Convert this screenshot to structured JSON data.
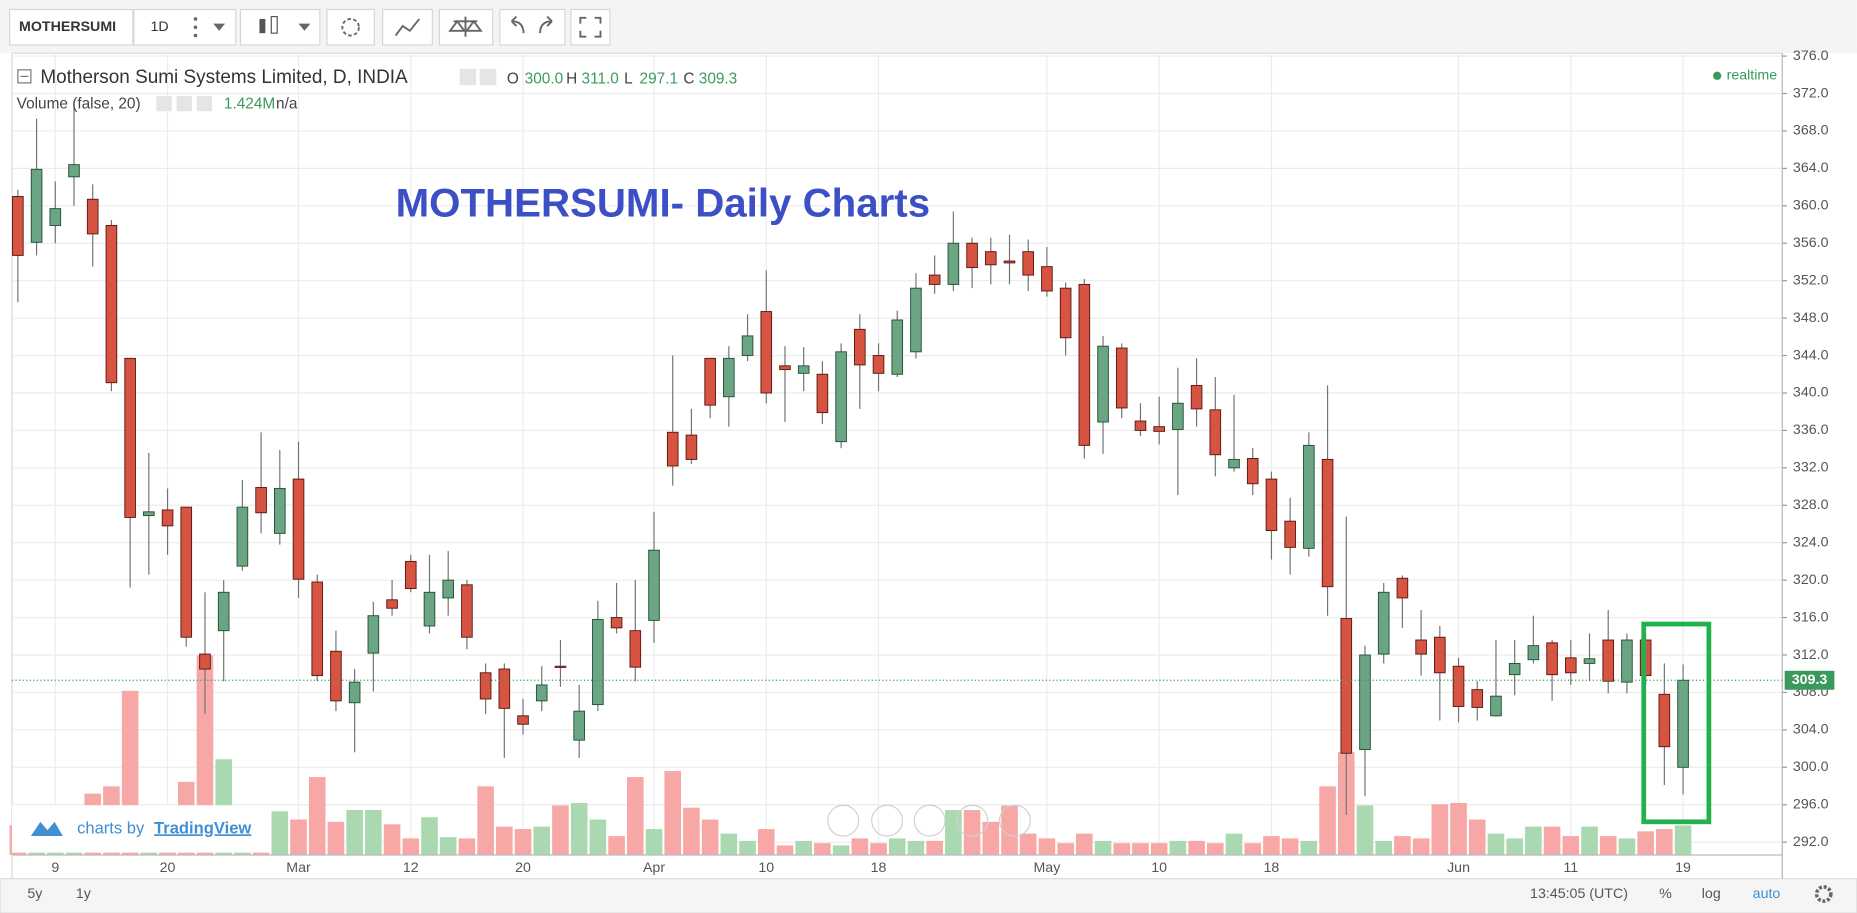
{
  "toolbar": {
    "symbol": "MOTHERSUMI",
    "interval": "1D"
  },
  "chart_data": {
    "type": "candlestick",
    "title": "MOTHERSUMI- Daily Charts",
    "symbol_description": "Motherson Sumi Systems Limited, D, INDIA",
    "ohlc_keys": [
      "O",
      "H",
      "L",
      "C"
    ],
    "ohlc_labels": [
      "300.0",
      "311.0",
      "297.1",
      "309.3"
    ],
    "volume_title": "Volume (false, 20)",
    "volume_label": "1.424M",
    "volume_ma_label": "n/a",
    "status": "realtime",
    "up_color": "#6ba583",
    "down_color": "#d75442",
    "up_border": "#225437",
    "down_border": "#5b1a13",
    "wick_color": "#737375",
    "up_volume_color": "#a9d8b1",
    "down_volume_color": "#f7a7a5",
    "last_price_color": "#3a9a5b",
    "grid": true,
    "categories": [
      null,
      null,
      "9",
      null,
      null,
      null,
      null,
      null,
      "20",
      null,
      null,
      null,
      null,
      null,
      null,
      "Mar",
      null,
      null,
      null,
      null,
      null,
      "12",
      null,
      null,
      null,
      null,
      null,
      "20",
      null,
      null,
      null,
      null,
      null,
      null,
      "Apr",
      null,
      null,
      null,
      null,
      null,
      "10",
      null,
      null,
      null,
      null,
      null,
      "18",
      null,
      null,
      null,
      null,
      null,
      null,
      null,
      null,
      "May",
      null,
      null,
      null,
      null,
      null,
      "10",
      null,
      null,
      null,
      null,
      null,
      "18",
      null,
      null,
      null,
      null,
      null,
      null,
      null,
      null,
      null,
      "Jun",
      null,
      null,
      null,
      null,
      null,
      "11",
      null,
      null,
      null,
      null,
      null,
      "19"
    ],
    "open": [
      361.0,
      356.1,
      357.9,
      363.1,
      360.7,
      357.9,
      343.7,
      326.9,
      327.5,
      327.8,
      312.1,
      314.6,
      321.5,
      329.9,
      325.0,
      330.8,
      319.8,
      312.4,
      306.9,
      312.2,
      317.9,
      322.0,
      315.1,
      318.1,
      319.5,
      310.1,
      310.5,
      305.5,
      307.1,
      310.8,
      302.9,
      306.7,
      316.0,
      314.6,
      315.7,
      335.8,
      335.5,
      343.7,
      339.6,
      344.0,
      348.7,
      342.9,
      342.1,
      342.0,
      334.8,
      346.8,
      344.0,
      342.0,
      344.4,
      352.6,
      351.6,
      356.0,
      355.1,
      354.1,
      355.1,
      353.5,
      351.2,
      351.6,
      336.9,
      344.8,
      337.0,
      336.4,
      336.1,
      340.8,
      338.2,
      332.0,
      333.0,
      330.8,
      326.3,
      323.4,
      332.9,
      315.9,
      301.9,
      312.1,
      320.2,
      313.6,
      313.9,
      310.8,
      308.3,
      305.5,
      309.9,
      311.5,
      313.3,
      311.7,
      311.1,
      313.6,
      309.1,
      313.6,
      307.8,
      300.0
    ],
    "high": [
      361.7,
      369.3,
      362.6,
      371.2,
      362.3,
      358.5,
      343.7,
      333.6,
      329.8,
      327.8,
      318.7,
      320.0,
      330.7,
      335.8,
      333.9,
      334.8,
      320.6,
      314.6,
      310.5,
      317.7,
      320.0,
      322.7,
      322.7,
      323.1,
      320.0,
      311.1,
      311.1,
      307.3,
      310.8,
      313.6,
      308.8,
      317.8,
      319.7,
      320.0,
      327.3,
      344.0,
      338.3,
      343.7,
      345.0,
      348.4,
      353.1,
      345.0,
      344.9,
      343.4,
      345.3,
      348.4,
      345.3,
      348.8,
      352.8,
      354.7,
      359.4,
      356.6,
      356.6,
      356.9,
      356.4,
      355.6,
      351.8,
      352.2,
      346.1,
      345.3,
      338.9,
      339.6,
      342.7,
      343.7,
      341.7,
      339.8,
      334.1,
      331.6,
      328.8,
      335.8,
      340.8,
      326.8,
      313.0,
      319.7,
      320.5,
      316.8,
      315.1,
      311.7,
      309.2,
      313.6,
      313.6,
      316.2,
      313.6,
      313.6,
      314.3,
      316.8,
      314.3,
      314.3,
      311.1,
      311.0
    ],
    "low": [
      349.7,
      354.7,
      356.0,
      360.0,
      353.5,
      340.2,
      319.2,
      320.6,
      322.7,
      312.9,
      305.7,
      309.2,
      321.0,
      325.0,
      323.8,
      318.1,
      309.2,
      306.0,
      301.6,
      308.1,
      316.2,
      318.7,
      314.3,
      316.2,
      312.6,
      305.7,
      301.0,
      303.5,
      306.0,
      308.6,
      301.0,
      306.0,
      314.3,
      309.2,
      313.3,
      330.1,
      332.4,
      337.3,
      336.4,
      343.4,
      338.9,
      336.9,
      340.2,
      336.7,
      334.1,
      338.3,
      340.2,
      341.7,
      343.7,
      350.6,
      350.9,
      351.2,
      351.6,
      351.6,
      350.9,
      350.3,
      344.0,
      333.0,
      333.5,
      337.3,
      335.4,
      334.5,
      329.1,
      336.4,
      331.1,
      331.6,
      329.1,
      322.2,
      320.6,
      322.5,
      316.2,
      294.9,
      296.9,
      311.1,
      314.9,
      309.8,
      305.0,
      304.8,
      305.0,
      305.4,
      307.7,
      311.1,
      307.1,
      308.8,
      309.2,
      307.9,
      307.9,
      308.8,
      298.1,
      297.1
    ],
    "close": [
      354.7,
      363.9,
      359.7,
      364.4,
      357.0,
      341.1,
      326.7,
      327.3,
      325.8,
      313.9,
      310.5,
      318.7,
      327.8,
      327.2,
      329.8,
      320.1,
      309.8,
      307.1,
      309.1,
      316.2,
      317.0,
      319.1,
      318.7,
      320.0,
      313.9,
      307.3,
      306.3,
      304.6,
      308.8,
      310.7,
      306.0,
      315.8,
      314.9,
      310.7,
      323.2,
      332.2,
      332.9,
      338.7,
      343.7,
      346.1,
      340.0,
      342.5,
      342.9,
      337.9,
      344.4,
      343.0,
      342.1,
      347.8,
      351.2,
      351.6,
      356.0,
      353.4,
      353.7,
      353.9,
      352.6,
      350.9,
      345.9,
      334.4,
      345.0,
      338.4,
      336.0,
      335.9,
      338.9,
      338.3,
      333.4,
      332.9,
      330.3,
      325.3,
      323.5,
      334.4,
      319.3,
      301.5,
      312.0,
      318.7,
      318.1,
      312.1,
      310.1,
      306.5,
      306.4,
      307.6,
      311.1,
      313.0,
      309.9,
      310.1,
      311.6,
      309.2,
      313.6,
      309.8,
      302.2,
      309.3
    ],
    "volume": [
      1.43,
      0.68,
      0.86,
      1.03,
      2.96,
      3.31,
      7.92,
      1.14,
      1.14,
      3.53,
      9.63,
      4.62,
      1.14,
      1.25,
      2.11,
      1.71,
      3.76,
      1.6,
      2.17,
      2.17,
      1.48,
      0.8,
      1.82,
      0.86,
      0.8,
      3.31,
      1.37,
      1.25,
      1.37,
      2.39,
      2.51,
      1.71,
      0.91,
      3.76,
      1.25,
      4.05,
      2.28,
      1.71,
      1.03,
      0.68,
      1.25,
      0.46,
      0.68,
      0.57,
      0.46,
      0.8,
      0.57,
      0.8,
      0.68,
      0.68,
      2.17,
      2.17,
      1.6,
      2.39,
      1.03,
      0.8,
      0.57,
      1.03,
      0.68,
      0.57,
      0.57,
      0.57,
      0.68,
      0.68,
      0.57,
      1.03,
      0.57,
      0.91,
      0.8,
      0.68,
      3.31,
      4.96,
      2.39,
      0.68,
      0.91,
      0.8,
      2.45,
      2.51,
      1.71,
      1.03,
      0.8,
      1.37,
      1.37,
      0.91,
      1.37,
      0.91,
      0.8,
      1.14,
      1.25,
      1.424
    ],
    "ylim": [
      288.1,
      376.3
    ],
    "yticks": [
      {
        "value": 292,
        "label": "292.0"
      },
      {
        "value": 296,
        "label": "296.0"
      },
      {
        "value": 300,
        "label": "300.0"
      },
      {
        "value": 304,
        "label": "304.0"
      },
      {
        "value": 308,
        "label": "308.0"
      },
      {
        "value": 312,
        "label": "312.0"
      },
      {
        "value": 316,
        "label": "316.0"
      },
      {
        "value": 320,
        "label": "320.0"
      },
      {
        "value": 324,
        "label": "324.0"
      },
      {
        "value": 328,
        "label": "328.0"
      },
      {
        "value": 332,
        "label": "332.0"
      },
      {
        "value": 336,
        "label": "336.0"
      },
      {
        "value": 340,
        "label": "340.0"
      },
      {
        "value": 344,
        "label": "344.0"
      },
      {
        "value": 348,
        "label": "348.0"
      },
      {
        "value": 352,
        "label": "352.0"
      },
      {
        "value": 356,
        "label": "356.0"
      },
      {
        "value": 360,
        "label": "360.0"
      },
      {
        "value": 364,
        "label": "364.0"
      },
      {
        "value": 368,
        "label": "368.0"
      },
      {
        "value": 372,
        "label": "372.0"
      },
      {
        "value": 376,
        "label": "376.0"
      }
    ],
    "volume_ylim": [
      0,
      10
    ]
  },
  "watermark": {
    "prefix": "charts by",
    "brand": "TradingView"
  },
  "footer": {
    "ranges": [
      "5y",
      "1y"
    ],
    "clock": "13:45:05 (UTC)",
    "percent": "%",
    "log": "log",
    "auto": "auto"
  }
}
